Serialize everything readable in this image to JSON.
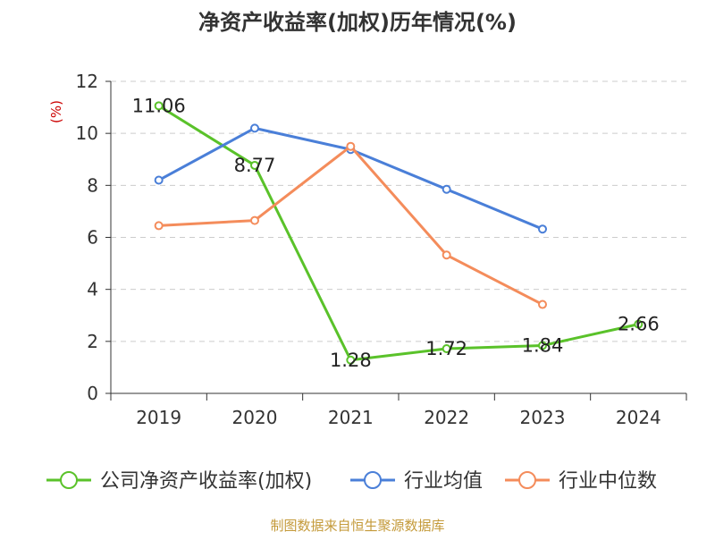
{
  "source_note": "制图数据来自恒生聚源数据库",
  "colors": {
    "company": "#5ac22a",
    "industry_avg": "#4a7fd8",
    "industry_median": "#f48c5b",
    "unit": "#cc0000",
    "source": "#c49a3a"
  },
  "chart_data": {
    "type": "line",
    "title": "净资产收益率(加权)历年情况(%)",
    "ylabel": "(%)",
    "xlabel": "",
    "categories": [
      "2019",
      "2020",
      "2021",
      "2022",
      "2023",
      "2024"
    ],
    "ylim": [
      0,
      12
    ],
    "yticks": [
      0,
      2,
      4,
      6,
      8,
      10,
      12
    ],
    "grid": true,
    "legend_position": "bottom",
    "series": [
      {
        "name": "公司净资产收益率(加权)",
        "color_key": "company",
        "values": [
          11.06,
          8.77,
          1.28,
          1.72,
          1.84,
          2.66
        ],
        "labels": [
          "11.06",
          "8.77",
          "1.28",
          "1.72",
          "1.84",
          "2.66"
        ]
      },
      {
        "name": "行业均值",
        "color_key": "industry_avg",
        "values": [
          8.2,
          10.2,
          9.38,
          7.85,
          6.32,
          null
        ]
      },
      {
        "name": "行业中位数",
        "color_key": "industry_median",
        "values": [
          6.45,
          6.65,
          9.5,
          5.32,
          3.42,
          null
        ]
      }
    ]
  }
}
